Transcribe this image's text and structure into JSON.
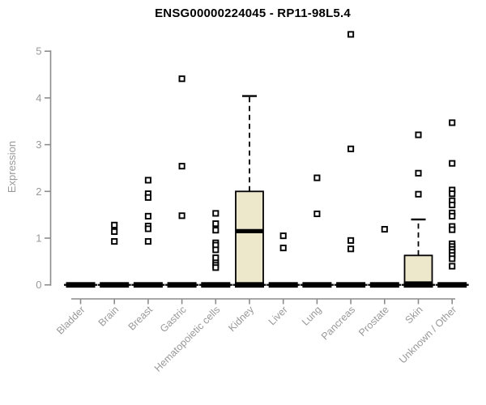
{
  "chart_data": {
    "type": "boxplot",
    "title": "ENSG00000224045 - RP11-98L5.4",
    "ylabel": "Expression",
    "xlabel": "",
    "ylim": [
      0,
      5.4
    ],
    "yticks": [
      0,
      1,
      2,
      3,
      4,
      5
    ],
    "grid": false,
    "legend": "none",
    "categories": [
      "Bladder",
      "Brain",
      "Breast",
      "Gastric",
      "Hematopoietic cells",
      "Kidney",
      "Liver",
      "Lung",
      "Pancreas",
      "Prostate",
      "Skin",
      "Unknown / Other"
    ],
    "series": [
      {
        "category": "Bladder",
        "q1": 0,
        "median": 0,
        "q3": 0,
        "whisker_high": 0,
        "outliers": []
      },
      {
        "category": "Brain",
        "q1": 0,
        "median": 0,
        "q3": 0,
        "whisker_high": 0,
        "outliers": [
          1.28,
          1.14,
          0.93
        ]
      },
      {
        "category": "Breast",
        "q1": 0,
        "median": 0,
        "q3": 0,
        "whisker_high": 0,
        "outliers": [
          2.24,
          1.95,
          1.87,
          1.47,
          1.26,
          1.2,
          0.93
        ]
      },
      {
        "category": "Gastric",
        "q1": 0,
        "median": 0,
        "q3": 0,
        "whisker_high": 0,
        "outliers": [
          4.41,
          2.54,
          1.48
        ]
      },
      {
        "category": "Hematopoietic cells",
        "q1": 0,
        "median": 0,
        "q3": 0,
        "whisker_high": 0,
        "outliers": [
          1.53,
          1.31,
          1.17,
          0.9,
          0.85,
          0.75,
          0.58,
          0.47,
          0.42,
          0.37
        ]
      },
      {
        "category": "Kidney",
        "q1": 0,
        "median": 1.15,
        "q3": 2.0,
        "whisker_high": 4.04,
        "outliers": []
      },
      {
        "category": "Liver",
        "q1": 0,
        "median": 0,
        "q3": 0,
        "whisker_high": 0,
        "outliers": [
          1.05,
          0.79
        ]
      },
      {
        "category": "Lung",
        "q1": 0,
        "median": 0,
        "q3": 0,
        "whisker_high": 0,
        "outliers": [
          2.29,
          1.52
        ]
      },
      {
        "category": "Pancreas",
        "q1": 0,
        "median": 0,
        "q3": 0,
        "whisker_high": 0,
        "outliers": [
          5.36,
          2.91,
          0.95,
          0.77
        ]
      },
      {
        "category": "Prostate",
        "q1": 0,
        "median": 0,
        "q3": 0,
        "whisker_high": 0,
        "outliers": [
          1.19
        ]
      },
      {
        "category": "Skin",
        "q1": 0,
        "median": 0.03,
        "q3": 0.63,
        "whisker_high": 1.4,
        "outliers": [
          3.21,
          2.39,
          1.94
        ]
      },
      {
        "category": "Unknown / Other",
        "q1": 0,
        "median": 0,
        "q3": 0,
        "whisker_high": 0,
        "outliers": [
          3.47,
          2.6,
          2.03,
          1.95,
          1.8,
          1.71,
          1.54,
          1.47,
          1.25,
          1.18,
          0.88,
          0.82,
          0.76,
          0.7,
          0.63,
          0.56,
          0.4
        ]
      }
    ],
    "colors": {
      "box_fill": "#ede7cb",
      "box_stroke": "#000000",
      "median": "#000000",
      "outlier_stroke": "#000000",
      "outlier_fill": "#ffffff",
      "axis": "#8c8c8c",
      "tick_label": "#999999",
      "title": "#000000",
      "background": "#ffffff"
    }
  }
}
